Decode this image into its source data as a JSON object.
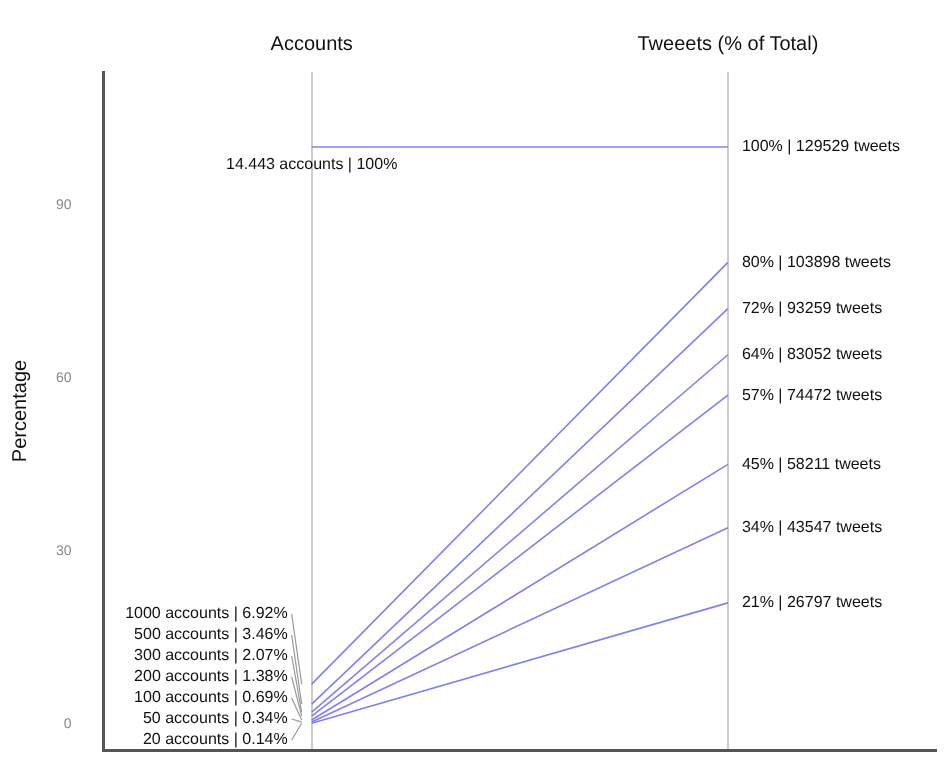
{
  "chart_data": {
    "type": "line",
    "categories": [
      "Accounts",
      "Tweeets (% of Total)"
    ],
    "ylabel": "Percentage",
    "ylim": [
      -4.5,
      113
    ],
    "yticks": [
      0,
      30,
      60,
      90
    ],
    "grid": "x",
    "legend": false,
    "series": [
      {
        "color": "#8080f0",
        "values": [
          100,
          100
        ],
        "value_labels": [
          "14.443 accounts | 100%",
          "100% | 129529 tweets"
        ]
      },
      {
        "color": "#8080f0",
        "values": [
          6.92,
          80
        ],
        "value_labels": [
          "1000 accounts | 6.92%",
          "80% | 103898 tweets"
        ]
      },
      {
        "color": "#8080f0",
        "values": [
          3.46,
          72
        ],
        "value_labels": [
          "500 accounts | 3.46%",
          "72% | 93259 tweets"
        ]
      },
      {
        "color": "#8080f0",
        "values": [
          2.07,
          64
        ],
        "value_labels": [
          "300 accounts | 2.07%",
          "64% | 83052 tweets"
        ]
      },
      {
        "color": "#8080f0",
        "values": [
          1.38,
          57
        ],
        "value_labels": [
          "200 accounts | 1.38%",
          "57% | 74472 tweets"
        ]
      },
      {
        "color": "#8080f0",
        "values": [
          0.69,
          45
        ],
        "value_labels": [
          "100 accounts | 0.69%",
          "45% | 58211 tweets"
        ]
      },
      {
        "color": "#8080f0",
        "values": [
          0.34,
          34
        ],
        "value_labels": [
          "50 accounts | 0.34%",
          "34% | 43547 tweets"
        ]
      },
      {
        "color": "#8080f0",
        "values": [
          0.14,
          21
        ],
        "value_labels": [
          "20 accounts | 0.14%",
          "21% | 26797 tweets"
        ]
      }
    ]
  }
}
